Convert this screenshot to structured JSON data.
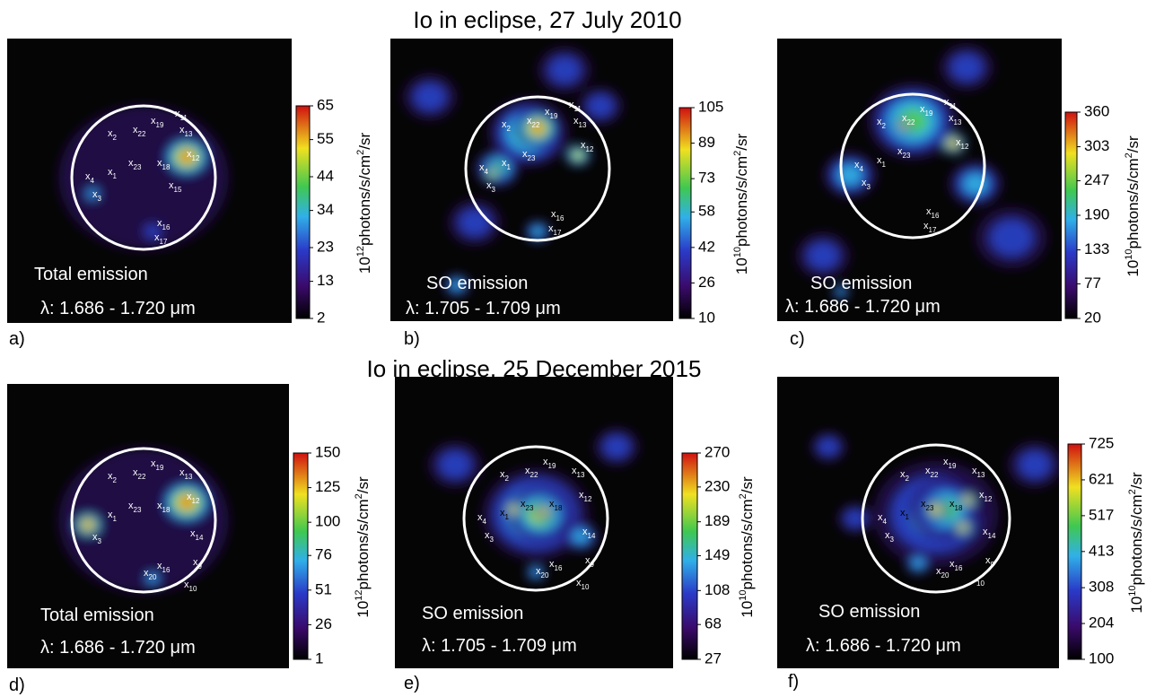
{
  "row_titles": [
    "Io in eclipse, 27 July 2010",
    "Io in eclipse, 25 December 2015"
  ],
  "spot_marker": "x",
  "panels": [
    {
      "letter": "a)",
      "emission": "Total emission",
      "wavelength": "λ: 1.686 - 1.720 μm",
      "colorbar": {
        "range": [
          2,
          65
        ],
        "ticks": [
          2,
          13,
          23,
          34,
          44,
          55,
          65
        ],
        "unit": {
          "prefix": "10",
          "exponent": "12",
          "text": "photons/s/cm",
          "area_exponent": "2",
          "suffix": "/sr"
        }
      },
      "spots": [
        "11",
        "19",
        "13",
        "2",
        "22",
        "12",
        "23",
        "18",
        "1",
        "4",
        "15",
        "3",
        "16",
        "17"
      ]
    },
    {
      "letter": "b)",
      "emission": "SO emission",
      "wavelength": "λ: 1.705 - 1.709 μm",
      "colorbar": {
        "range": [
          10,
          105
        ],
        "ticks": [
          10,
          26,
          42,
          58,
          73,
          89,
          105
        ],
        "unit": {
          "prefix": "10",
          "exponent": "10",
          "text": "photons/s/cm",
          "area_exponent": "2",
          "suffix": "/sr"
        }
      },
      "spots": [
        "11",
        "19",
        "13",
        "2",
        "22",
        "12",
        "23",
        "1",
        "4",
        "3",
        "16",
        "17"
      ]
    },
    {
      "letter": "c)",
      "emission": "SO emission",
      "wavelength": "λ: 1.686 - 1.720 μm",
      "colorbar": {
        "range": [
          20,
          360
        ],
        "ticks": [
          20,
          77,
          133,
          190,
          247,
          303,
          360
        ],
        "unit": {
          "prefix": "10",
          "exponent": "10",
          "text": "photons/s/cm",
          "area_exponent": "2",
          "suffix": "/sr"
        }
      },
      "spots": [
        "11",
        "19",
        "13",
        "2",
        "22",
        "12",
        "23",
        "1",
        "4",
        "3",
        "16",
        "17"
      ]
    },
    {
      "letter": "d)",
      "emission": "Total emission",
      "wavelength": "λ: 1.686 - 1.720 μm",
      "colorbar": {
        "range": [
          1,
          150
        ],
        "ticks": [
          1,
          26,
          51,
          76,
          100,
          125,
          150
        ],
        "unit": {
          "prefix": "10",
          "exponent": "12",
          "text": "photons/s/cm",
          "area_exponent": "2",
          "suffix": "/sr"
        }
      },
      "spots": [
        "13",
        "19",
        "22",
        "2",
        "12",
        "23",
        "18",
        "1",
        "3",
        "14",
        "9",
        "20",
        "16",
        "10"
      ]
    },
    {
      "letter": "e)",
      "emission": "SO emission",
      "wavelength": "λ: 1.705 - 1.709 μm",
      "colorbar": {
        "range": [
          27,
          270
        ],
        "ticks": [
          27,
          68,
          108,
          149,
          189,
          230,
          270
        ],
        "unit": {
          "prefix": "10",
          "exponent": "10",
          "text": "photons/s/cm",
          "area_exponent": "2",
          "suffix": "/sr"
        }
      },
      "spots": [
        "2",
        "22",
        "19",
        "13",
        "23",
        "18",
        "12",
        "1",
        "4",
        "3",
        "14",
        "20",
        "16",
        "9",
        "10"
      ]
    },
    {
      "letter": "f)",
      "emission": "SO emission",
      "wavelength": "λ: 1.686 - 1.720 μm",
      "colorbar": {
        "range": [
          100,
          725
        ],
        "ticks": [
          100,
          204,
          308,
          413,
          517,
          621,
          725
        ],
        "unit": {
          "prefix": "10",
          "exponent": "10",
          "text": "photons/s/cm",
          "area_exponent": "2",
          "suffix": "/sr"
        }
      },
      "spots": [
        "2",
        "22",
        "19",
        "13",
        "23",
        "18",
        "12",
        "1",
        "4",
        "3",
        "14",
        "20",
        "16",
        "9",
        "10"
      ],
      "unmarked_spots": [
        "10"
      ]
    }
  ]
}
